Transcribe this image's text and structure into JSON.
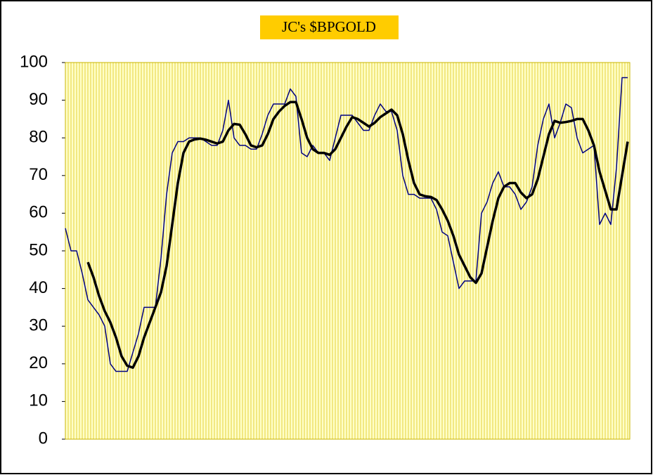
{
  "chart_data": {
    "type": "line",
    "title": "JC's $BPGOLD",
    "categories": [
      null,
      null,
      null,
      null,
      null,
      null,
      null,
      null,
      null,
      null,
      null,
      null,
      null,
      null,
      null,
      null,
      null,
      null,
      null,
      null,
      null,
      null,
      null,
      null,
      null,
      null,
      null,
      null,
      null,
      null,
      null,
      null,
      null,
      null,
      null,
      null,
      null,
      null,
      null,
      null,
      null,
      null,
      null,
      null,
      null,
      null,
      null,
      null,
      null,
      null,
      null,
      null,
      null,
      null,
      null,
      null,
      null,
      null,
      null,
      null,
      null,
      null,
      null,
      null,
      null,
      null,
      null,
      null,
      null,
      null,
      null,
      null,
      null,
      null,
      null,
      null,
      null,
      null,
      null,
      null,
      null,
      null,
      null,
      null,
      null,
      null,
      null,
      null,
      null,
      null,
      null,
      null,
      null,
      null,
      null,
      null,
      null,
      null,
      null,
      null,
      null
    ],
    "series": [
      {
        "color": "#000080",
        "values": [
          56,
          50,
          50,
          44,
          37,
          35,
          33,
          30,
          20,
          18,
          18,
          18,
          23,
          28,
          35,
          35,
          35,
          48,
          65,
          76,
          79,
          79,
          80,
          80,
          80,
          79,
          78,
          78,
          82,
          90,
          80,
          78,
          78,
          77,
          77,
          81,
          86,
          89,
          89,
          89,
          93,
          91,
          76,
          75,
          78,
          76,
          76,
          74,
          80,
          86,
          86,
          86,
          84,
          82,
          82,
          86,
          89,
          87,
          87,
          82,
          70,
          65,
          65,
          64,
          64,
          64,
          61,
          55,
          54,
          47,
          40,
          42,
          42,
          42,
          60,
          63,
          68,
          71,
          67,
          67,
          65,
          61,
          63,
          67,
          78,
          85,
          89,
          80,
          84,
          89,
          88,
          80,
          76,
          77,
          78,
          57,
          60,
          57,
          72,
          96,
          96
        ]
      },
      {
        "color": "#000000",
        "values": [
          null,
          null,
          null,
          null,
          47,
          43,
          38,
          34,
          31,
          27,
          22,
          19.5,
          19,
          22,
          27,
          31,
          35,
          39,
          46,
          57,
          68,
          76,
          79,
          79.6,
          79.8,
          79.5,
          79,
          78.5,
          79,
          82,
          83.7,
          83.5,
          81,
          78,
          77.5,
          78,
          81,
          85,
          87,
          88.5,
          89.5,
          89.5,
          85,
          80,
          77,
          76,
          76,
          75.5,
          77,
          80,
          83,
          85.5,
          85,
          84,
          83,
          84,
          85.5,
          86.5,
          87.5,
          86,
          81,
          74,
          68,
          65,
          64.5,
          64.3,
          63.5,
          61,
          58,
          54,
          49,
          46,
          43,
          41.5,
          44,
          51,
          58,
          64,
          67,
          68,
          68,
          65.5,
          64,
          65,
          69,
          75,
          81,
          84.5,
          84,
          84.2,
          84.5,
          85,
          85,
          82,
          78,
          71,
          66,
          61,
          61,
          70,
          79
        ]
      }
    ],
    "ylim": [
      0,
      100
    ],
    "yticks": [
      0,
      10,
      20,
      30,
      40,
      50,
      60,
      70,
      80,
      90,
      100
    ],
    "grid": true
  }
}
